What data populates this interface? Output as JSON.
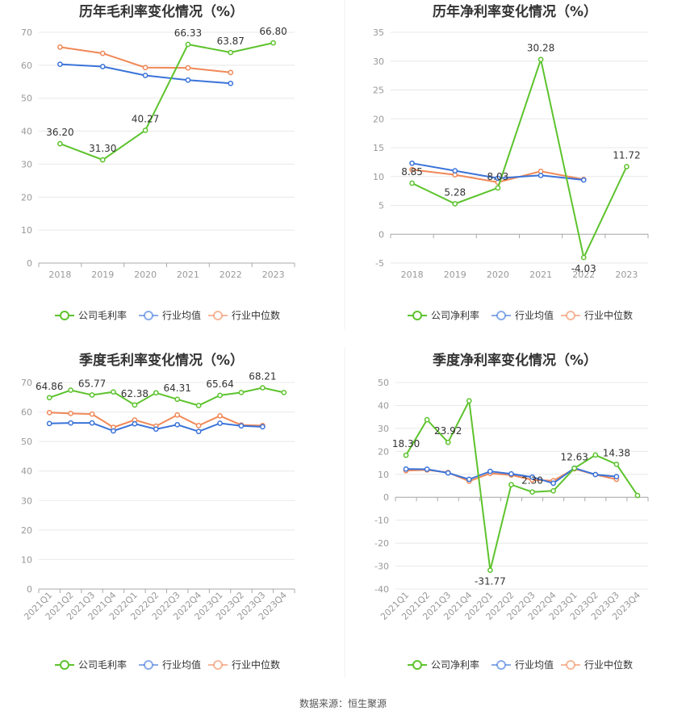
{
  "colors": {
    "company": "#5dc32d",
    "avg": "#3a73d9",
    "median": "#f08858",
    "grid": "#e8e8e8",
    "axis": "#cccccc"
  },
  "source": "数据来源：恒生聚源",
  "chart_data": [
    {
      "type": "line",
      "title": "历年毛利率变化情况（%）",
      "categories": [
        "2018",
        "2019",
        "2020",
        "2021",
        "2022",
        "2023"
      ],
      "ylim": [
        0,
        70
      ],
      "yticks": [
        0,
        10,
        20,
        30,
        40,
        50,
        60,
        70
      ],
      "series": [
        {
          "name": "公司毛利率",
          "role": "company",
          "values": [
            36.2,
            31.3,
            40.27,
            66.33,
            63.87,
            66.8
          ]
        },
        {
          "name": "行业均值",
          "role": "avg",
          "values": [
            60.3,
            59.6,
            56.9,
            55.5,
            54.5,
            null
          ]
        },
        {
          "name": "行业中位数",
          "role": "median",
          "values": [
            65.5,
            63.6,
            59.3,
            59.2,
            57.8,
            null
          ]
        }
      ],
      "labels": [
        {
          "i": 0,
          "text": "36.20"
        },
        {
          "i": 1,
          "text": "31.30"
        },
        {
          "i": 2,
          "text": "40.27"
        },
        {
          "i": 3,
          "text": "66.33"
        },
        {
          "i": 4,
          "text": "63.87"
        },
        {
          "i": 5,
          "text": "66.80"
        }
      ],
      "legend": [
        "公司毛利率",
        "行业均值",
        "行业中位数"
      ]
    },
    {
      "type": "line",
      "title": "历年净利率变化情况（%）",
      "categories": [
        "2018",
        "2019",
        "2020",
        "2021",
        "2022",
        "2023"
      ],
      "ylim": [
        -5,
        35
      ],
      "yticks": [
        -5,
        0,
        5,
        10,
        15,
        20,
        25,
        30,
        35
      ],
      "series": [
        {
          "name": "公司净利率",
          "role": "company",
          "values": [
            8.85,
            5.28,
            8.03,
            30.28,
            -4.03,
            11.72
          ]
        },
        {
          "name": "行业均值",
          "role": "avg",
          "values": [
            12.3,
            11.0,
            9.7,
            10.2,
            9.4,
            null
          ]
        },
        {
          "name": "行业中位数",
          "role": "median",
          "values": [
            11.2,
            10.3,
            9.0,
            10.9,
            9.5,
            null
          ]
        }
      ],
      "labels": [
        {
          "i": 0,
          "text": "8.85"
        },
        {
          "i": 1,
          "text": "5.28"
        },
        {
          "i": 2,
          "text": "8.03"
        },
        {
          "i": 3,
          "text": "30.28"
        },
        {
          "i": 4,
          "text": "-4.03"
        },
        {
          "i": 5,
          "text": "11.72"
        }
      ],
      "legend": [
        "公司净利率",
        "行业均值",
        "行业中位数"
      ]
    },
    {
      "type": "line",
      "title": "季度毛利率变化情况（%）",
      "categories": [
        "2021Q1",
        "2021Q2",
        "2021Q3",
        "2021Q4",
        "2022Q1",
        "2022Q2",
        "2022Q3",
        "2022Q4",
        "2023Q1",
        "2023Q2",
        "2023Q3",
        "2023Q4"
      ],
      "ylim": [
        0,
        70
      ],
      "yticks": [
        0,
        10,
        20,
        30,
        40,
        50,
        60,
        70
      ],
      "series": [
        {
          "name": "公司毛利率",
          "role": "company",
          "values": [
            64.86,
            67.4,
            65.77,
            66.8,
            62.38,
            66.5,
            64.31,
            62.2,
            65.64,
            66.6,
            68.21,
            66.6
          ]
        },
        {
          "name": "行业均值",
          "role": "avg",
          "values": [
            56.1,
            56.3,
            56.3,
            53.6,
            56.0,
            54.2,
            55.7,
            53.4,
            56.2,
            55.3,
            55.0,
            null
          ]
        },
        {
          "name": "行业中位数",
          "role": "median",
          "values": [
            59.8,
            59.5,
            59.3,
            54.8,
            57.3,
            55.2,
            59.0,
            55.4,
            58.7,
            55.6,
            55.4,
            null
          ]
        }
      ],
      "labels": [
        {
          "i": 0,
          "text": "64.86"
        },
        {
          "i": 2,
          "text": "65.77"
        },
        {
          "i": 4,
          "text": "62.38"
        },
        {
          "i": 6,
          "text": "64.31"
        },
        {
          "i": 8,
          "text": "65.64"
        },
        {
          "i": 10,
          "text": "68.21"
        }
      ],
      "legend": [
        "公司毛利率",
        "行业均值",
        "行业中位数"
      ]
    },
    {
      "type": "line",
      "title": "季度净利率变化情况（%）",
      "categories": [
        "2021Q1",
        "2021Q2",
        "2021Q3",
        "2021Q4",
        "2022Q1",
        "2022Q2",
        "2022Q3",
        "2022Q4",
        "2023Q1",
        "2023Q2",
        "2023Q3",
        "2023Q4"
      ],
      "ylim": [
        -40,
        50
      ],
      "yticks": [
        -40,
        -30,
        -20,
        -10,
        0,
        10,
        20,
        30,
        40,
        50
      ],
      "series": [
        {
          "name": "公司净利率",
          "role": "company",
          "values": [
            18.3,
            33.8,
            23.92,
            42.0,
            -31.77,
            5.5,
            2.3,
            2.8,
            12.63,
            18.4,
            14.38,
            0.8
          ]
        },
        {
          "name": "行业均值",
          "role": "avg",
          "values": [
            12.3,
            12.2,
            10.6,
            7.8,
            11.3,
            10.2,
            8.8,
            6.1,
            12.7,
            9.9,
            9.0,
            null
          ]
        },
        {
          "name": "行业中位数",
          "role": "median",
          "values": [
            11.6,
            11.9,
            10.8,
            7.0,
            10.4,
            9.7,
            7.6,
            7.2,
            12.4,
            9.9,
            7.8,
            null
          ]
        }
      ],
      "labels": [
        {
          "i": 0,
          "text": "18.30"
        },
        {
          "i": 2,
          "text": "23.92"
        },
        {
          "i": 4,
          "text": "-31.77"
        },
        {
          "i": 6,
          "text": "2.30"
        },
        {
          "i": 8,
          "text": "12.63"
        },
        {
          "i": 10,
          "text": "14.38"
        }
      ],
      "legend": [
        "公司净利率",
        "行业均值",
        "行业中位数"
      ]
    }
  ]
}
